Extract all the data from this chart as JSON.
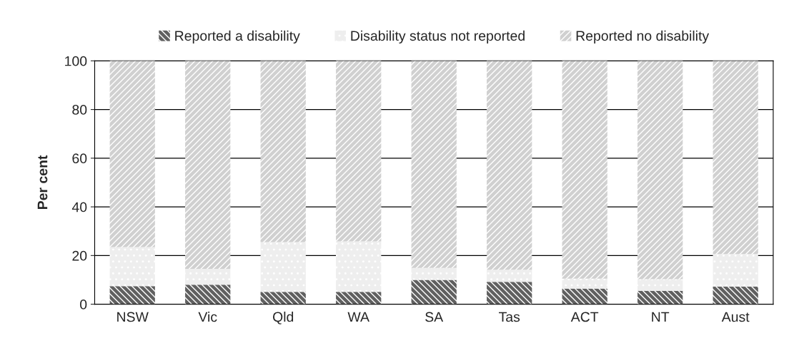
{
  "chart_data": {
    "type": "bar",
    "stacked": true,
    "ylabel": "Per cent",
    "categories": [
      "NSW",
      "Vic",
      "Qld",
      "WA",
      "SA",
      "Tas",
      "ACT",
      "NT",
      "Aust"
    ],
    "series": [
      {
        "name": "Reported a disability",
        "color": "#606060",
        "values": [
          7.4,
          8.0,
          5.1,
          5.1,
          10.0,
          9.2,
          6.4,
          5.5,
          7.2
        ]
      },
      {
        "name": "Disability status not reported",
        "color": "#eeeeee",
        "values": [
          16.1,
          6.5,
          20.4,
          20.7,
          4.9,
          5.0,
          4.1,
          4.8,
          13.4
        ]
      },
      {
        "name": "Reported no disability",
        "color": "#d0d0d0",
        "values": [
          76.5,
          85.5,
          74.5,
          74.2,
          85.1,
          85.8,
          89.5,
          89.7,
          79.4
        ]
      }
    ],
    "ylim": [
      0,
      100
    ],
    "yticks": [
      0,
      20,
      40,
      60,
      80,
      100
    ],
    "grid": "y",
    "legend": "top"
  }
}
